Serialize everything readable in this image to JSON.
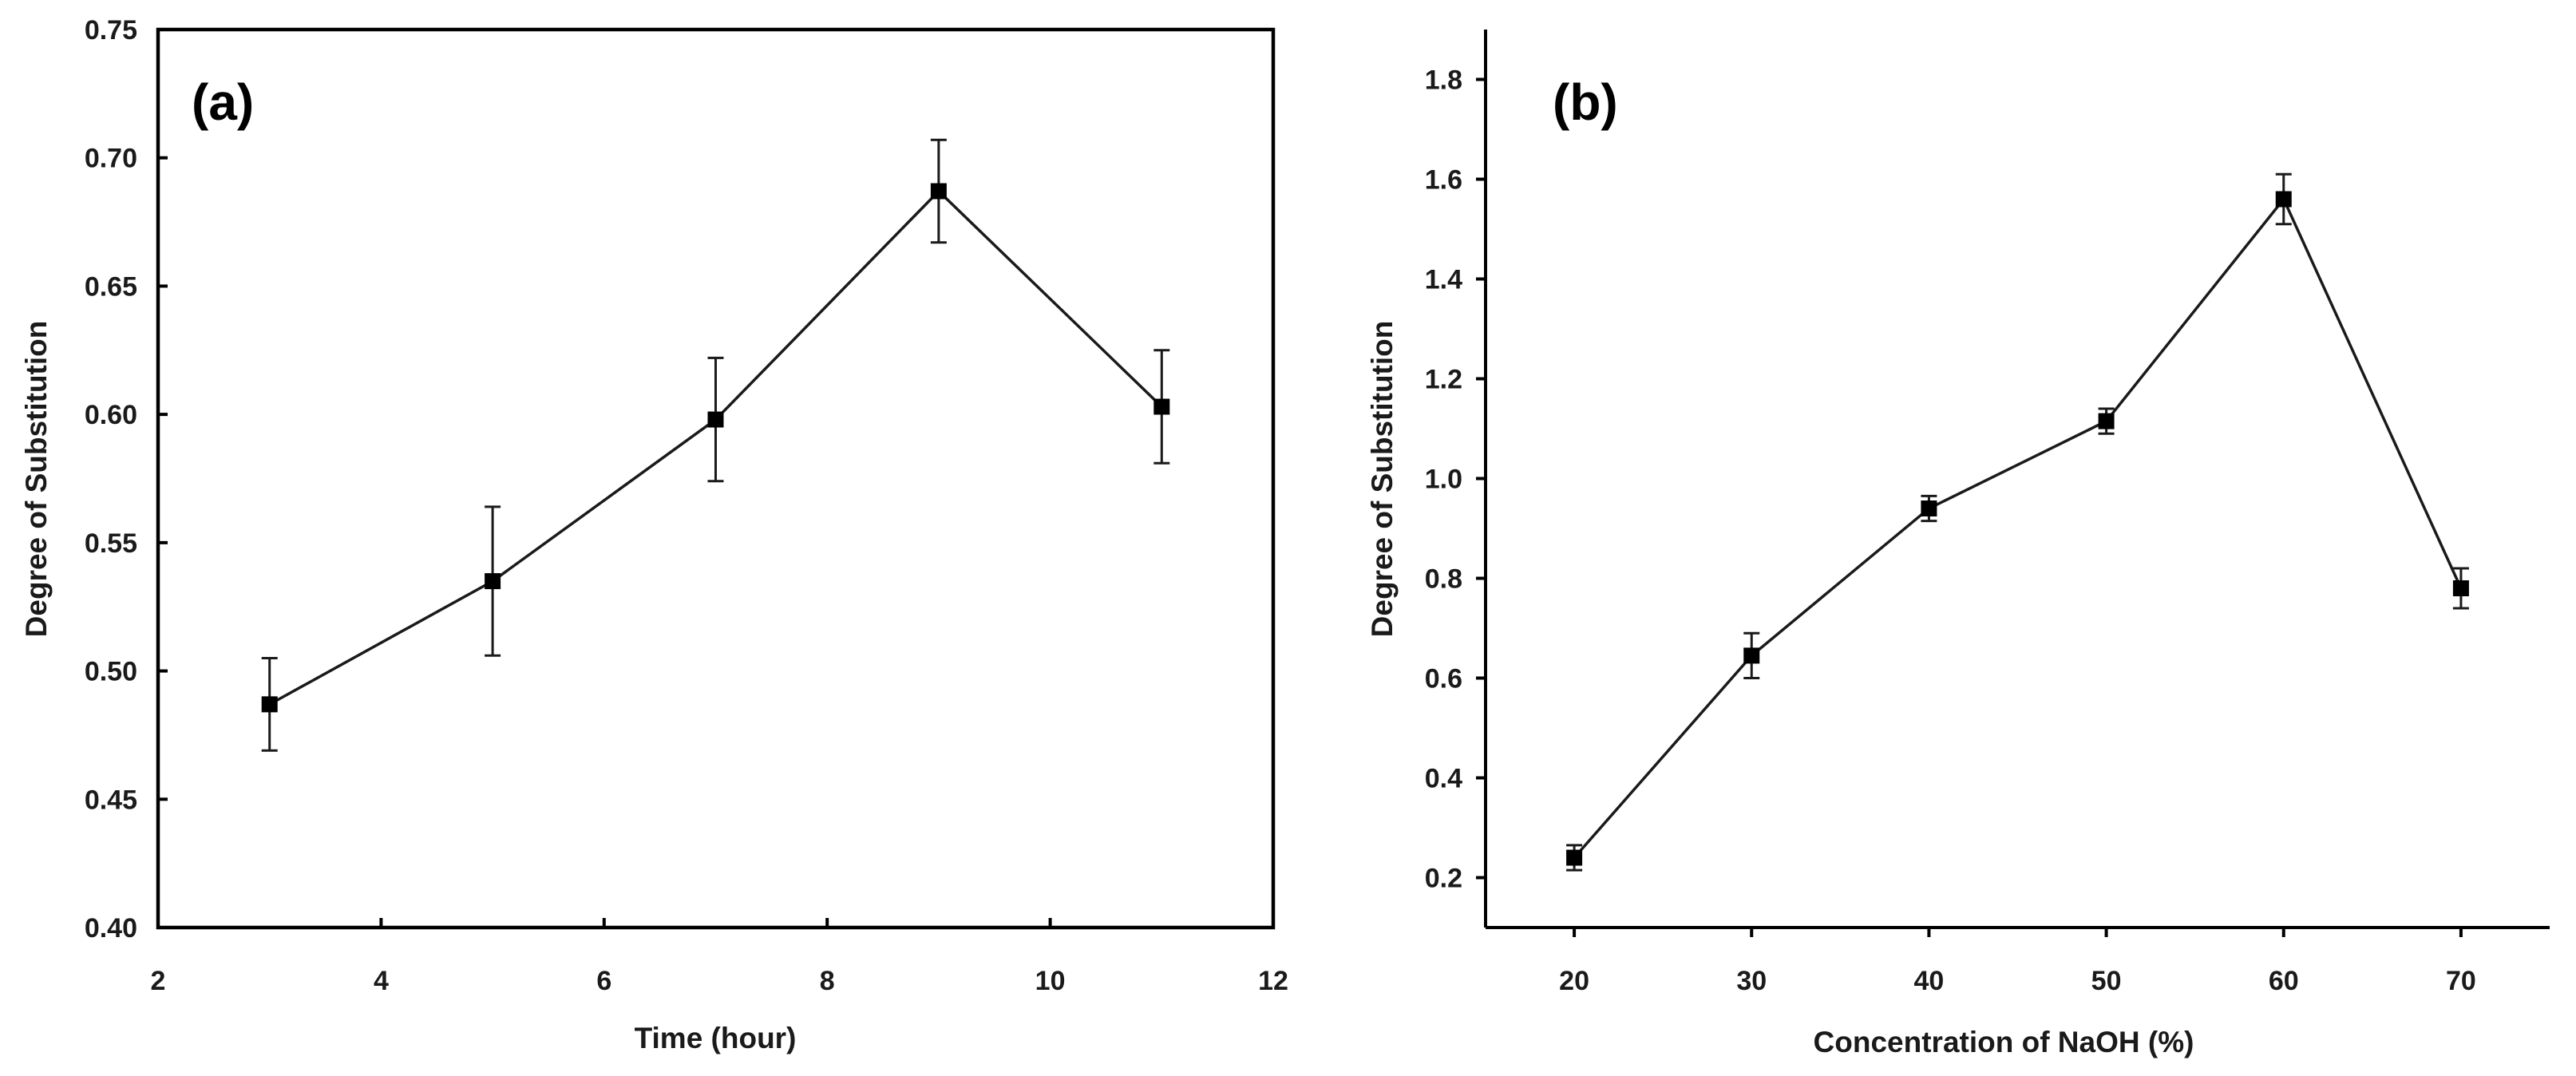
{
  "chart_data": [
    {
      "type": "line",
      "panel_label": "(a)",
      "xlabel": "Time (hour)",
      "ylabel": "Degree of Substitution",
      "xlim": [
        2,
        12
      ],
      "ylim": [
        0.4,
        0.75
      ],
      "x_ticks": [
        2,
        4,
        6,
        8,
        10,
        12
      ],
      "x_tick_labels": [
        "2",
        "4",
        "6",
        "8",
        "10",
        "12"
      ],
      "y_ticks": [
        0.4,
        0.45,
        0.5,
        0.55,
        0.6,
        0.65,
        0.7,
        0.75
      ],
      "y_tick_labels": [
        "0.40",
        "0.45",
        "0.50",
        "0.55",
        "0.60",
        "0.65",
        "0.70",
        "0.75"
      ],
      "grid": false,
      "series": [
        {
          "x": [
            3,
            5,
            7,
            9,
            11
          ],
          "y": [
            0.487,
            0.535,
            0.598,
            0.687,
            0.603
          ],
          "error": [
            0.018,
            0.029,
            0.024,
            0.02,
            0.022
          ]
        }
      ]
    },
    {
      "type": "line",
      "panel_label": "(b)",
      "xlabel": "Concentration of NaOH (%)",
      "ylabel": "Degree of Substitution",
      "xlim": [
        15,
        75
      ],
      "ylim": [
        0.1,
        1.9
      ],
      "x_ticks": [
        20,
        30,
        40,
        50,
        60,
        70
      ],
      "x_tick_labels": [
        "20",
        "30",
        "40",
        "50",
        "60",
        "70"
      ],
      "y_ticks": [
        0.2,
        0.4,
        0.6,
        0.8,
        1.0,
        1.2,
        1.4,
        1.6,
        1.8
      ],
      "y_tick_labels": [
        "0.2",
        "0.4",
        "0.6",
        "0.8",
        "1.0",
        "1.2",
        "1.4",
        "1.6",
        "1.8"
      ],
      "grid": false,
      "series": [
        {
          "x": [
            20,
            30,
            40,
            50,
            60,
            70
          ],
          "y": [
            0.24,
            0.645,
            0.94,
            1.115,
            1.56,
            0.78
          ],
          "error": [
            0.025,
            0.045,
            0.025,
            0.025,
            0.05,
            0.04
          ]
        }
      ]
    }
  ]
}
